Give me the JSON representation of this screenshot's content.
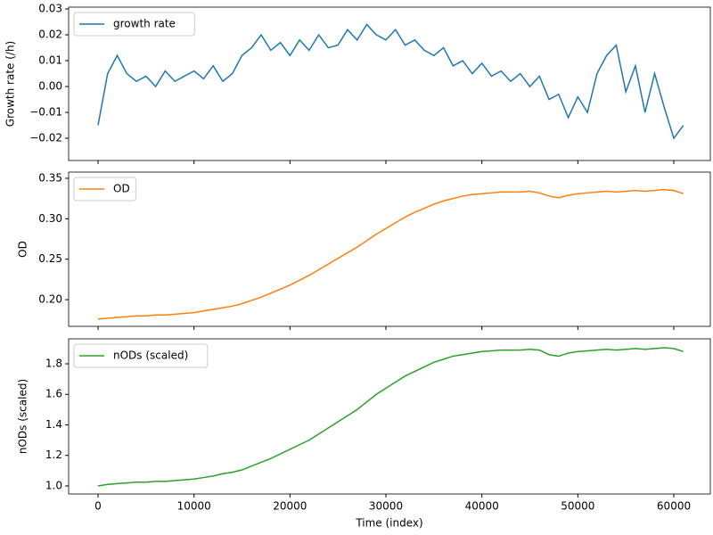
{
  "chart_data": [
    {
      "type": "line",
      "ylabel": "Growth rate (/h)",
      "legend": "upper left",
      "x": [
        0,
        1000,
        2000,
        3000,
        4000,
        5000,
        6000,
        7000,
        8000,
        9000,
        10000,
        11000,
        12000,
        13000,
        14000,
        15000,
        16000,
        17000,
        18000,
        19000,
        20000,
        21000,
        22000,
        23000,
        24000,
        25000,
        26000,
        27000,
        28000,
        29000,
        30000,
        31000,
        32000,
        33000,
        34000,
        35000,
        36000,
        37000,
        38000,
        39000,
        40000,
        41000,
        42000,
        43000,
        44000,
        45000,
        46000,
        47000,
        48000,
        49000,
        50000,
        51000,
        52000,
        53000,
        54000,
        55000,
        56000,
        57000,
        58000,
        59000,
        60000,
        61000
      ],
      "series": [
        {
          "name": "growth rate",
          "color": "#1f77b4",
          "values": [
            -0.015,
            0.005,
            0.012,
            0.005,
            0.002,
            0.004,
            0.0,
            0.006,
            0.002,
            0.004,
            0.006,
            0.003,
            0.008,
            0.002,
            0.005,
            0.012,
            0.015,
            0.02,
            0.014,
            0.017,
            0.012,
            0.018,
            0.014,
            0.02,
            0.015,
            0.016,
            0.022,
            0.018,
            0.024,
            0.02,
            0.018,
            0.022,
            0.016,
            0.018,
            0.014,
            0.012,
            0.015,
            0.008,
            0.01,
            0.005,
            0.009,
            0.004,
            0.006,
            0.002,
            0.005,
            0.0,
            0.004,
            -0.005,
            -0.003,
            -0.012,
            -0.004,
            -0.01,
            0.005,
            0.012,
            0.016,
            -0.002,
            0.008,
            -0.01,
            0.005,
            -0.008,
            -0.02,
            -0.015
          ]
        }
      ],
      "xlim": [
        -3065,
        63806
      ],
      "xticks": [
        0,
        10000,
        20000,
        30000,
        40000,
        50000,
        60000
      ],
      "ylim": [
        -0.0286,
        0.0307
      ],
      "yticks": [
        {
          "value": -0.02,
          "label": "−0.02"
        },
        {
          "value": -0.01,
          "label": "−0.01"
        },
        {
          "value": 0,
          "label": "0.00"
        },
        0.01,
        0.02,
        0.03
      ]
    },
    {
      "type": "line",
      "ylabel": "OD",
      "legend": "upper left",
      "x": [
        0,
        1000,
        2000,
        3000,
        4000,
        5000,
        6000,
        7000,
        8000,
        9000,
        10000,
        11000,
        12000,
        13000,
        14000,
        15000,
        16000,
        17000,
        18000,
        19000,
        20000,
        21000,
        22000,
        23000,
        24000,
        25000,
        26000,
        27000,
        28000,
        29000,
        30000,
        31000,
        32000,
        33000,
        34000,
        35000,
        36000,
        37000,
        38000,
        39000,
        40000,
        41000,
        42000,
        43000,
        44000,
        45000,
        46000,
        47000,
        48000,
        49000,
        50000,
        51000,
        52000,
        53000,
        54000,
        55000,
        56000,
        57000,
        58000,
        59000,
        60000,
        61000
      ],
      "series": [
        {
          "name": "OD",
          "color": "#ff7f0e",
          "values": [
            0.176,
            0.177,
            0.178,
            0.179,
            0.18,
            0.18,
            0.181,
            0.181,
            0.182,
            0.183,
            0.184,
            0.186,
            0.188,
            0.19,
            0.192,
            0.195,
            0.199,
            0.203,
            0.208,
            0.213,
            0.218,
            0.224,
            0.23,
            0.237,
            0.244,
            0.251,
            0.258,
            0.265,
            0.273,
            0.281,
            0.288,
            0.295,
            0.302,
            0.308,
            0.313,
            0.318,
            0.322,
            0.325,
            0.328,
            0.33,
            0.331,
            0.332,
            0.333,
            0.333,
            0.333,
            0.334,
            0.332,
            0.328,
            0.326,
            0.329,
            0.331,
            0.332,
            0.333,
            0.334,
            0.333,
            0.334,
            0.335,
            0.334,
            0.335,
            0.336,
            0.335,
            0.331
          ]
        }
      ],
      "xlim": [
        -3065,
        63806
      ],
      "xticks": [
        0,
        10000,
        20000,
        30000,
        40000,
        50000,
        60000
      ],
      "ylim": [
        0.167,
        0.3577
      ],
      "yticks": [
        {
          "value": 0.2,
          "label": "0.20"
        },
        0.25,
        {
          "value": 0.3,
          "label": "0.30"
        },
        0.35
      ]
    },
    {
      "type": "line",
      "ylabel": "nODs (scaled)",
      "xlabel": "Time (index)",
      "legend": "upper left",
      "x": [
        0,
        1000,
        2000,
        3000,
        4000,
        5000,
        6000,
        7000,
        8000,
        9000,
        10000,
        11000,
        12000,
        13000,
        14000,
        15000,
        16000,
        17000,
        18000,
        19000,
        20000,
        21000,
        22000,
        23000,
        24000,
        25000,
        26000,
        27000,
        28000,
        29000,
        30000,
        31000,
        32000,
        33000,
        34000,
        35000,
        36000,
        37000,
        38000,
        39000,
        40000,
        41000,
        42000,
        43000,
        44000,
        45000,
        46000,
        47000,
        48000,
        49000,
        50000,
        51000,
        52000,
        53000,
        54000,
        55000,
        56000,
        57000,
        58000,
        59000,
        60000,
        61000
      ],
      "series": [
        {
          "name": "nODs (scaled)",
          "color": "#2ca02c",
          "values": [
            1.0,
            1.01,
            1.015,
            1.02,
            1.025,
            1.025,
            1.03,
            1.03,
            1.035,
            1.04,
            1.045,
            1.055,
            1.065,
            1.08,
            1.09,
            1.105,
            1.13,
            1.155,
            1.18,
            1.21,
            1.24,
            1.27,
            1.3,
            1.34,
            1.38,
            1.42,
            1.46,
            1.5,
            1.55,
            1.6,
            1.64,
            1.68,
            1.72,
            1.75,
            1.78,
            1.81,
            1.83,
            1.85,
            1.86,
            1.87,
            1.88,
            1.885,
            1.89,
            1.89,
            1.89,
            1.895,
            1.89,
            1.86,
            1.85,
            1.87,
            1.88,
            1.885,
            1.89,
            1.895,
            1.89,
            1.895,
            1.9,
            1.895,
            1.9,
            1.905,
            1.9,
            1.88
          ]
        }
      ],
      "xlim": [
        -3065,
        63806
      ],
      "xticks": [
        0,
        10000,
        20000,
        30000,
        40000,
        50000,
        60000
      ],
      "ylim": [
        0.9474,
        1.9635
      ],
      "yticks": [
        {
          "value": 1.0,
          "label": "1.0"
        },
        1.2,
        1.4,
        1.6,
        1.8
      ]
    }
  ]
}
